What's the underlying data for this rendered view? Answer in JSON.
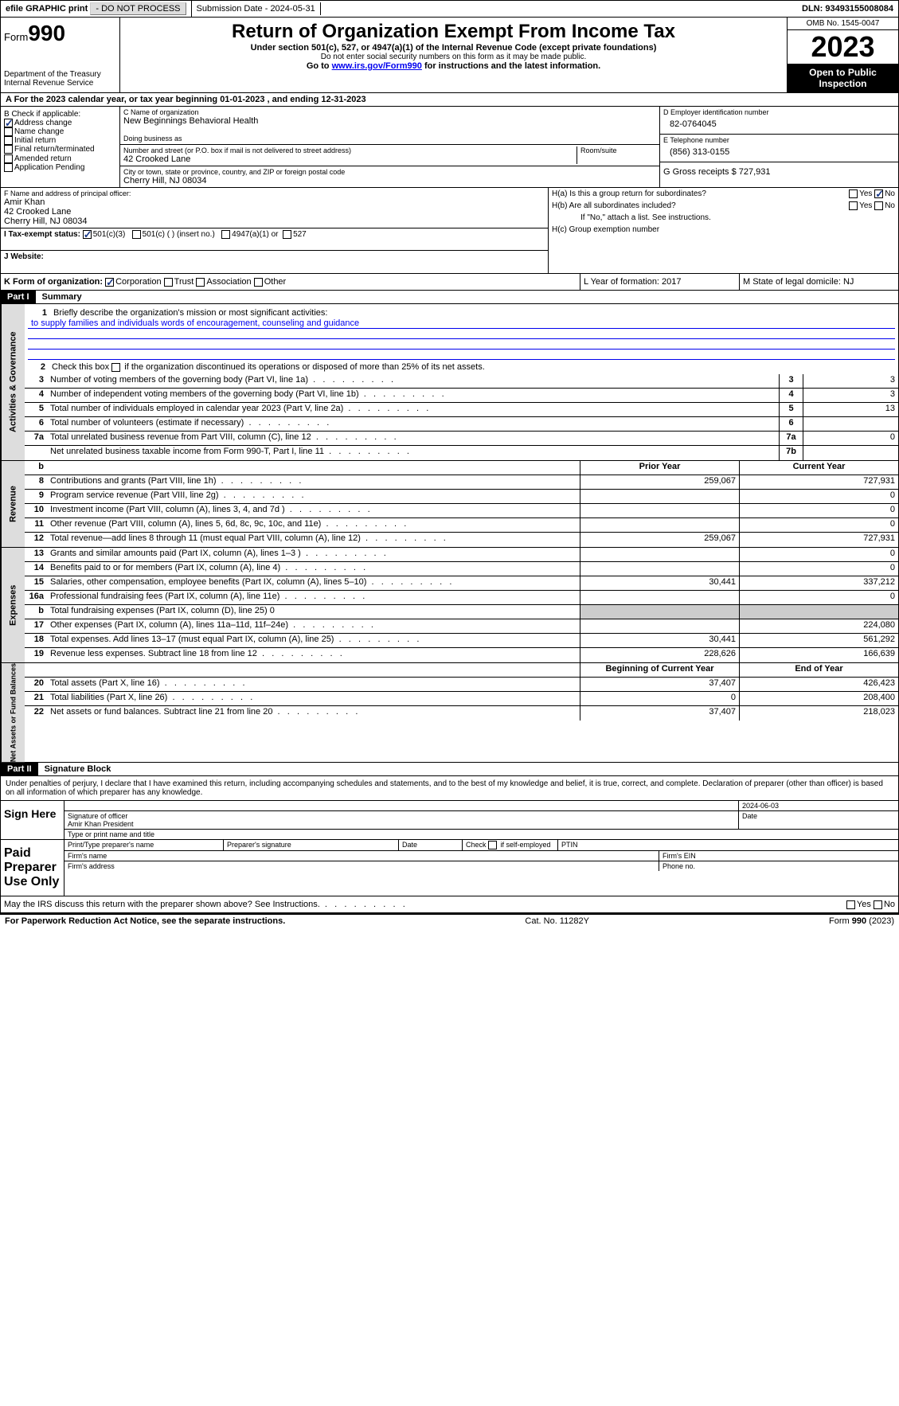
{
  "topbar": {
    "efile": "efile GRAPHIC print",
    "print_btn": "- DO NOT PROCESS",
    "sub_date": "Submission Date - 2024-05-31",
    "dln": "DLN: 93493155008084"
  },
  "header": {
    "form_label": "Form",
    "form_no": "990",
    "dept": "Department of the Treasury\nInternal Revenue Service",
    "title": "Return of Organization Exempt From Income Tax",
    "sub1": "Under section 501(c), 527, or 4947(a)(1) of the Internal Revenue Code (except private foundations)",
    "sub2": "Do not enter social security numbers on this form as it may be made public.",
    "sub3": "Go to ",
    "link": "www.irs.gov/Form990",
    "sub3b": " for instructions and the latest information.",
    "omb": "OMB No. 1545-0047",
    "year": "2023",
    "open": "Open to Public Inspection"
  },
  "rowA": "A For the 2023 calendar year, or tax year beginning 01-01-2023   , and ending 12-31-2023",
  "boxB": {
    "title": "B Check if applicable:",
    "items": [
      "Address change",
      "Name change",
      "Initial return",
      "Final return/terminated",
      "Amended return",
      "Application Pending"
    ],
    "checked": [
      true,
      false,
      false,
      false,
      false,
      false
    ]
  },
  "boxC": {
    "name_lbl": "C Name of organization",
    "name": "New Beginnings Behavioral Health",
    "dba_lbl": "Doing business as",
    "addr_lbl": "Number and street (or P.O. box if mail is not delivered to street address)",
    "addr": "42 Crooked Lane",
    "room_lbl": "Room/suite",
    "city_lbl": "City or town, state or province, country, and ZIP or foreign postal code",
    "city": "Cherry Hill, NJ  08034"
  },
  "boxD": {
    "lbl": "D Employer identification number",
    "val": "82-0764045"
  },
  "boxE": {
    "lbl": "E Telephone number",
    "val": "(856) 313-0155"
  },
  "boxG": {
    "lbl": "G Gross receipts $ 727,931"
  },
  "boxF": {
    "lbl": "F  Name and address of principal officer:",
    "name": "Amir Khan",
    "addr1": "42 Crooked Lane",
    "addr2": "Cherry Hill, NJ  08034"
  },
  "boxH": {
    "a": "H(a)  Is this a group return for subordinates?",
    "b": "H(b)  Are all subordinates included?",
    "note": "If \"No,\" attach a list. See instructions.",
    "c": "H(c)  Group exemption number"
  },
  "rowI": {
    "lbl": "I  Tax-exempt status:",
    "o1": "501(c)(3)",
    "o2": "501(c) (  ) (insert no.)",
    "o3": "4947(a)(1) or",
    "o4": "527"
  },
  "rowJ": "J  Website:",
  "rowK": {
    "lbl": "K Form of organization:",
    "o1": "Corporation",
    "o2": "Trust",
    "o3": "Association",
    "o4": "Other"
  },
  "rowL": "L Year of formation: 2017",
  "rowM": "M State of legal domicile: NJ",
  "part1": {
    "hdr": "Part I",
    "title": "Summary"
  },
  "ag": {
    "title": "Activities & Governance",
    "l1": "Briefly describe the organization's mission or most significant activities:",
    "mission": "to supply families and individuals words of encouragement, counseling and guidance",
    "l2": "Check this box       if the organization discontinued its operations or disposed of more than 25% of its net assets.",
    "rows": [
      {
        "n": "3",
        "d": "Number of voting members of the governing body (Part VI, line 1a)",
        "v": "3"
      },
      {
        "n": "4",
        "d": "Number of independent voting members of the governing body (Part VI, line 1b)",
        "v": "3"
      },
      {
        "n": "5",
        "d": "Total number of individuals employed in calendar year 2023 (Part V, line 2a)",
        "v": "13"
      },
      {
        "n": "6",
        "d": "Total number of volunteers (estimate if necessary)",
        "v": ""
      },
      {
        "n": "7a",
        "d": "Total unrelated business revenue from Part VIII, column (C), line 12",
        "v": "0"
      },
      {
        "n": "",
        "d": "Net unrelated business taxable income from Form 990-T, Part I, line 11",
        "n2": "7b",
        "v": ""
      }
    ]
  },
  "rev": {
    "title": "Revenue",
    "hdr_prior": "Prior Year",
    "hdr_curr": "Current Year",
    "rows": [
      {
        "n": "8",
        "d": "Contributions and grants (Part VIII, line 1h)",
        "p": "259,067",
        "c": "727,931"
      },
      {
        "n": "9",
        "d": "Program service revenue (Part VIII, line 2g)",
        "p": "",
        "c": "0"
      },
      {
        "n": "10",
        "d": "Investment income (Part VIII, column (A), lines 3, 4, and 7d )",
        "p": "",
        "c": "0"
      },
      {
        "n": "11",
        "d": "Other revenue (Part VIII, column (A), lines 5, 6d, 8c, 9c, 10c, and 11e)",
        "p": "",
        "c": "0"
      },
      {
        "n": "12",
        "d": "Total revenue—add lines 8 through 11 (must equal Part VIII, column (A), line 12)",
        "p": "259,067",
        "c": "727,931"
      }
    ]
  },
  "exp": {
    "title": "Expenses",
    "rows": [
      {
        "n": "13",
        "d": "Grants and similar amounts paid (Part IX, column (A), lines 1–3 )",
        "p": "",
        "c": "0"
      },
      {
        "n": "14",
        "d": "Benefits paid to or for members (Part IX, column (A), line 4)",
        "p": "",
        "c": "0"
      },
      {
        "n": "15",
        "d": "Salaries, other compensation, employee benefits (Part IX, column (A), lines 5–10)",
        "p": "30,441",
        "c": "337,212"
      },
      {
        "n": "16a",
        "d": "Professional fundraising fees (Part IX, column (A), line 11e)",
        "p": "",
        "c": "0"
      },
      {
        "n": "b",
        "d": "Total fundraising expenses (Part IX, column (D), line 25) 0",
        "p": "shade",
        "c": "shade"
      },
      {
        "n": "17",
        "d": "Other expenses (Part IX, column (A), lines 11a–11d, 11f–24e)",
        "p": "",
        "c": "224,080"
      },
      {
        "n": "18",
        "d": "Total expenses. Add lines 13–17 (must equal Part IX, column (A), line 25)",
        "p": "30,441",
        "c": "561,292"
      },
      {
        "n": "19",
        "d": "Revenue less expenses. Subtract line 18 from line 12",
        "p": "228,626",
        "c": "166,639"
      }
    ]
  },
  "na": {
    "title": "Net Assets or Fund Balances",
    "hdr_beg": "Beginning of Current Year",
    "hdr_end": "End of Year",
    "rows": [
      {
        "n": "20",
        "d": "Total assets (Part X, line 16)",
        "p": "37,407",
        "c": "426,423"
      },
      {
        "n": "21",
        "d": "Total liabilities (Part X, line 26)",
        "p": "0",
        "c": "208,400"
      },
      {
        "n": "22",
        "d": "Net assets or fund balances. Subtract line 21 from line 20",
        "p": "37,407",
        "c": "218,023"
      }
    ]
  },
  "part2": {
    "hdr": "Part II",
    "title": "Signature Block"
  },
  "perjury": "Under penalties of perjury, I declare that I have examined this return, including accompanying schedules and statements, and to the best of my knowledge and belief, it is true, correct, and complete. Declaration of preparer (other than officer) is based on all information of which preparer has any knowledge.",
  "sign": {
    "here": "Sign Here",
    "date": "2024-06-03",
    "sig_lbl": "Signature of officer",
    "name": "Amir Khan President",
    "type_lbl": "Type or print name and title",
    "date_lbl": "Date"
  },
  "paid": {
    "title": "Paid Preparer Use Only",
    "c1": "Print/Type preparer's name",
    "c2": "Preparer's signature",
    "c3": "Date",
    "c4": "Check       if self-employed",
    "c5": "PTIN",
    "firm": "Firm's name",
    "ein": "Firm's EIN",
    "addr": "Firm's address",
    "phone": "Phone no."
  },
  "discuss": "May the IRS discuss this return with the preparer shown above? See Instructions.",
  "footer": {
    "l": "For Paperwork Reduction Act Notice, see the separate instructions.",
    "m": "Cat. No. 11282Y",
    "r": "Form 990 (2023)"
  }
}
